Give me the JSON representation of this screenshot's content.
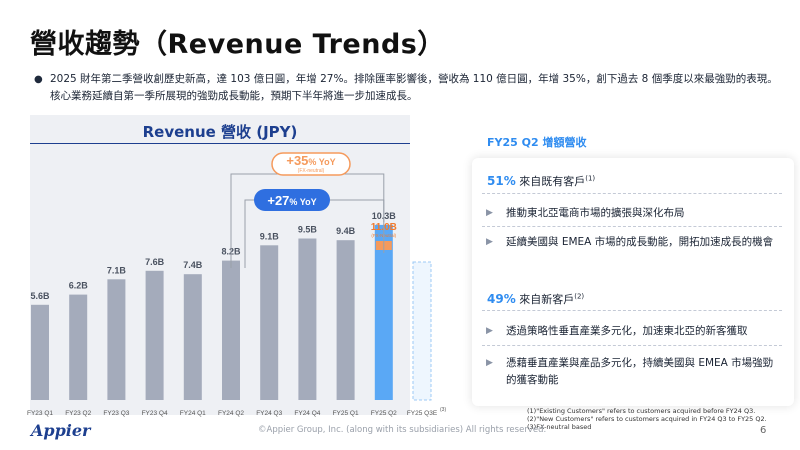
{
  "page": {
    "title": "營收趨勢（Revenue Trends）",
    "bullet": "2025 財年第二季營收創歷史新高，達 103 億日圓，年增 27%。排除匯率影響後，營收為 110 億日圓，年增 35%，創下過去 8 個季度以來最強勁的表現。核心業務延續自第一季所展現的強勁成長動能，預期下半年將進一步加速成長。",
    "logo": "Appier",
    "copyright": "©Appier Group, Inc. (along with its subsidiaries) All rights reserved.",
    "page_number": "6"
  },
  "chart_data": {
    "type": "bar",
    "title": "Revenue 營收 (JPY)",
    "categories": [
      "FY23 Q1",
      "FY23 Q2",
      "FY23 Q3",
      "FY23 Q4",
      "FY24 Q1",
      "FY24 Q2",
      "FY24 Q3",
      "FY24 Q4",
      "FY25 Q1",
      "FY25 Q2",
      "FY25 Q3E"
    ],
    "values": [
      5.6,
      6.2,
      7.1,
      7.6,
      7.4,
      8.2,
      9.1,
      9.5,
      9.4,
      10.3,
      null
    ],
    "value_labels": [
      "5.6B",
      "6.2B",
      "7.1B",
      "7.6B",
      "7.4B",
      "8.2B",
      "9.1B",
      "9.5B",
      "9.4B",
      "10.3B",
      ""
    ],
    "fx_neutral": {
      "category": "FY25 Q2",
      "value": 11.0,
      "label": "11.0B",
      "note": "(FX-Neutral)"
    },
    "last_category_superscript": "(3)",
    "annotations": [
      {
        "label_big": "+35",
        "label_pct": "%",
        "label_rest": " YoY",
        "sub": "(FX-neutral)",
        "color": "#f59a5c"
      },
      {
        "label_big": "+27",
        "label_pct": "%",
        "label_rest": " YoY",
        "sub": "",
        "color": "#2f6fe0"
      }
    ],
    "colors": {
      "bar": "#a4abbb",
      "highlight": "#5aa8f5",
      "fx_bar": "#f59a5c",
      "fx_label": "#f07c30",
      "projected_border": "#9ccaf5"
    }
  },
  "panel": {
    "header": "FY25 Q2 增額營收",
    "sections": [
      {
        "pct": "51%",
        "label": "來自既有客戶",
        "sup": "(1)",
        "items": [
          "推動東北亞電商市場的擴張與深化布局",
          "延續美國與 EMEA 市場的成長動能，開拓加速成長的機會"
        ]
      },
      {
        "pct": "49%",
        "label": "來自新客戶",
        "sup": "(2)",
        "items": [
          "透過策略性垂直產業多元化，加速東北亞的新客獲取",
          "憑藉垂直產業與產品多元化，持續美國與 EMEA 市場強勁的獲客動能"
        ]
      }
    ],
    "arrow_icon": "▶",
    "footnotes": [
      "(1)\"Existing Customers\" refers to customers acquired before FY24 Q3.",
      "(2)\"New Customers\" refers to customers acquired in FY24 Q3 to FY25 Q2.",
      "(3)FX-neutral based"
    ]
  }
}
